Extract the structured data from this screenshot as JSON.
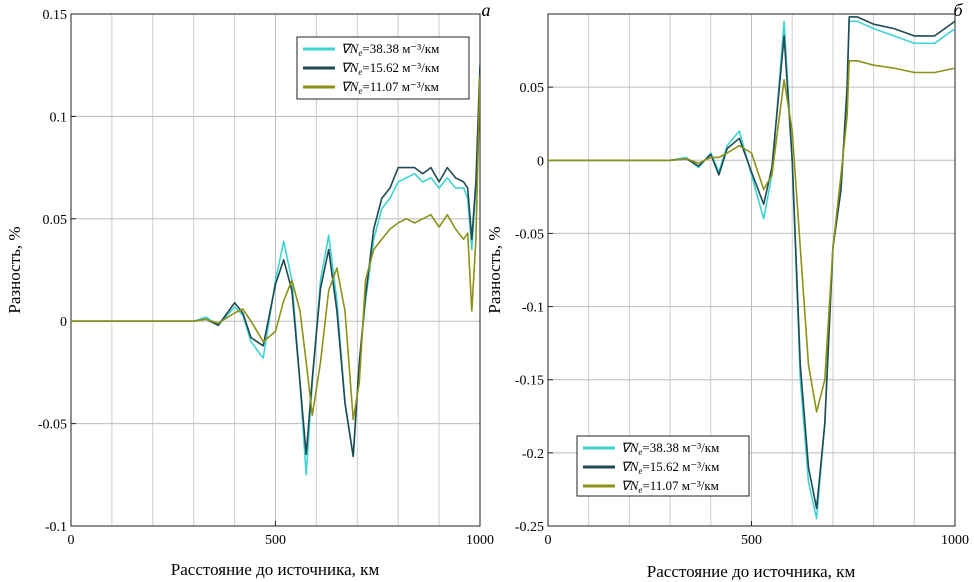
{
  "chart_data": [
    {
      "type": "line",
      "panel_label": "а",
      "xlabel": "Расстояние до источника, км",
      "ylabel": "Разность, %",
      "xlim": [
        0,
        1000
      ],
      "ylim": [
        -0.1,
        0.15
      ],
      "xticks": [
        0,
        500,
        1000
      ],
      "xtick_labels": [
        "0",
        "500",
        "1000"
      ],
      "yticks": [
        -0.1,
        -0.05,
        0,
        0.05,
        0.1,
        0.15
      ],
      "ytick_labels": [
        "-0.1",
        "-0.05",
        "0",
        "0.05",
        "0.1",
        "0.15"
      ],
      "grid": true,
      "legend_position": "top-right",
      "legend_symbol": "∇N",
      "legend_subscript": "e",
      "legend_unit": " м⁻³/км",
      "series": [
        {
          "name": "∇Ne=38.38 м⁻³/км",
          "value_text": "=38.38",
          "color": "#3fd3d3",
          "x": [
            0,
            100,
            200,
            260,
            300,
            330,
            360,
            400,
            420,
            440,
            470,
            500,
            520,
            540,
            560,
            575,
            590,
            610,
            630,
            650,
            670,
            690,
            705,
            720,
            740,
            760,
            780,
            800,
            820,
            840,
            860,
            880,
            900,
            920,
            940,
            960,
            970,
            980,
            990,
            1000
          ],
          "y": [
            0,
            0,
            0,
            0,
            0,
            0.002,
            -0.002,
            0.007,
            0.003,
            -0.01,
            -0.018,
            0.02,
            0.039,
            0.02,
            -0.03,
            -0.075,
            -0.03,
            0.02,
            0.042,
            0.01,
            -0.04,
            -0.066,
            -0.02,
            0.01,
            0.04,
            0.055,
            0.06,
            0.068,
            0.07,
            0.072,
            0.068,
            0.07,
            0.065,
            0.07,
            0.065,
            0.065,
            0.06,
            0.035,
            0.065,
            0.12
          ]
        },
        {
          "name": "∇Ne=15.62 м⁻³/км",
          "value_text": "=15.62",
          "color": "#1f4a52",
          "x": [
            0,
            100,
            200,
            260,
            300,
            330,
            360,
            400,
            420,
            440,
            470,
            500,
            520,
            540,
            560,
            575,
            590,
            610,
            630,
            650,
            670,
            690,
            705,
            720,
            740,
            760,
            780,
            800,
            820,
            840,
            860,
            880,
            900,
            920,
            940,
            960,
            970,
            980,
            990,
            1000
          ],
          "y": [
            0,
            0,
            0,
            0,
            0,
            0.001,
            -0.002,
            0.009,
            0.004,
            -0.008,
            -0.012,
            0.018,
            0.03,
            0.015,
            -0.03,
            -0.065,
            -0.028,
            0.016,
            0.035,
            0.005,
            -0.04,
            -0.066,
            -0.02,
            0.012,
            0.045,
            0.06,
            0.065,
            0.075,
            0.075,
            0.075,
            0.072,
            0.075,
            0.068,
            0.075,
            0.07,
            0.068,
            0.065,
            0.04,
            0.068,
            0.125
          ]
        },
        {
          "name": "∇Ne=11.07 м⁻³/км",
          "value_text": "=11.07",
          "color": "#8c9117",
          "x": [
            0,
            100,
            200,
            260,
            300,
            330,
            360,
            400,
            420,
            440,
            470,
            500,
            520,
            540,
            560,
            575,
            590,
            610,
            630,
            650,
            670,
            690,
            705,
            720,
            740,
            760,
            780,
            800,
            820,
            840,
            860,
            880,
            900,
            920,
            940,
            960,
            970,
            980,
            990,
            1000
          ],
          "y": [
            0,
            0,
            0,
            0,
            0,
            0.001,
            -0.001,
            0.004,
            0.006,
            0,
            -0.01,
            -0.005,
            0.01,
            0.02,
            0.005,
            -0.02,
            -0.046,
            -0.02,
            0.015,
            0.026,
            0.005,
            -0.048,
            -0.03,
            0.02,
            0.035,
            0.04,
            0.045,
            0.048,
            0.05,
            0.048,
            0.05,
            0.052,
            0.046,
            0.052,
            0.045,
            0.04,
            0.043,
            0.005,
            0.04,
            0.12
          ]
        }
      ]
    },
    {
      "type": "line",
      "panel_label": "б",
      "xlabel": "Расстояние до источника, км",
      "ylabel": "Разность, %",
      "xlim": [
        0,
        1000
      ],
      "ylim": [
        -0.25,
        0.1
      ],
      "xticks": [
        0,
        500,
        1000
      ],
      "xtick_labels": [
        "0",
        "500",
        "1000"
      ],
      "yticks": [
        -0.25,
        -0.2,
        -0.15,
        -0.1,
        -0.05,
        0,
        0.05
      ],
      "ytick_labels": [
        "-0.25",
        "-0.2",
        "-0.15",
        "-0.1",
        "-0.05",
        "0",
        "0.05"
      ],
      "grid": true,
      "legend_position": "bottom-left",
      "legend_symbol": "∇N",
      "legend_subscript": "e",
      "legend_unit": " м⁻³/км",
      "series": [
        {
          "name": "∇Ne=38.38 м⁻³/км",
          "value_text": "=38.38",
          "color": "#3fd3d3",
          "x": [
            0,
            100,
            200,
            260,
            300,
            340,
            370,
            400,
            420,
            440,
            470,
            500,
            530,
            550,
            580,
            600,
            620,
            640,
            660,
            680,
            700,
            720,
            735,
            740,
            760,
            800,
            850,
            900,
            950,
            1000
          ],
          "y": [
            0,
            0,
            0,
            0,
            0,
            0.002,
            -0.005,
            0.005,
            -0.008,
            0.01,
            0.02,
            -0.01,
            -0.04,
            -0.01,
            0.095,
            0,
            -0.15,
            -0.22,
            -0.245,
            -0.18,
            -0.06,
            -0.02,
            0.05,
            0.095,
            0.095,
            0.09,
            0.085,
            0.08,
            0.08,
            0.09
          ]
        },
        {
          "name": "∇Ne=15.62 м⁻³/км",
          "value_text": "=15.62",
          "color": "#1f4a52",
          "x": [
            0,
            100,
            200,
            260,
            300,
            340,
            370,
            400,
            420,
            440,
            470,
            500,
            530,
            550,
            580,
            600,
            620,
            640,
            660,
            680,
            700,
            720,
            735,
            740,
            760,
            800,
            850,
            900,
            950,
            1000
          ],
          "y": [
            0,
            0,
            0,
            0,
            0,
            0.001,
            -0.004,
            0.004,
            -0.01,
            0.008,
            0.015,
            -0.008,
            -0.03,
            -0.005,
            0.085,
            0,
            -0.14,
            -0.21,
            -0.238,
            -0.18,
            -0.06,
            -0.02,
            0.05,
            0.098,
            0.098,
            0.093,
            0.09,
            0.085,
            0.085,
            0.095
          ]
        },
        {
          "name": "∇Ne=11.07 м⁻³/км",
          "value_text": "=11.07",
          "color": "#8c9117",
          "x": [
            0,
            100,
            200,
            260,
            300,
            340,
            370,
            400,
            420,
            440,
            470,
            500,
            530,
            550,
            580,
            600,
            620,
            640,
            660,
            680,
            700,
            720,
            735,
            740,
            760,
            800,
            850,
            900,
            950,
            1000
          ],
          "y": [
            0,
            0,
            0,
            0,
            0,
            0.001,
            -0.002,
            0.002,
            0.002,
            0.005,
            0.01,
            0.005,
            -0.02,
            -0.01,
            0.055,
            0.02,
            -0.06,
            -0.14,
            -0.172,
            -0.15,
            -0.06,
            -0.01,
            0.03,
            0.068,
            0.068,
            0.065,
            0.063,
            0.06,
            0.06,
            0.063
          ]
        }
      ]
    }
  ]
}
